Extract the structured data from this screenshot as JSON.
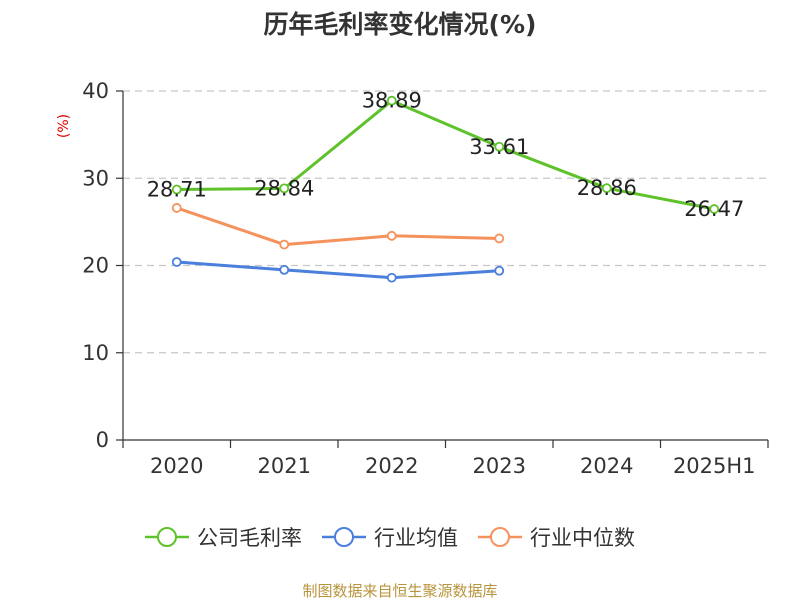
{
  "chart_data": {
    "type": "line",
    "title": "历年毛利率变化情况(%)",
    "ylabel": "(%)",
    "xlabel": "",
    "categories": [
      "2020",
      "2021",
      "2022",
      "2023",
      "2024",
      "2025H1"
    ],
    "ylim": [
      0,
      40
    ],
    "yticks": [
      0,
      10,
      20,
      30,
      40
    ],
    "grid": true,
    "legend_position": "bottom",
    "series": [
      {
        "name": "公司毛利率",
        "color": "#5ec22a",
        "values": [
          28.71,
          28.84,
          38.89,
          33.61,
          28.86,
          26.47
        ],
        "labels": [
          "28.71",
          "28.84",
          "38.89",
          "33.61",
          "28.86",
          "26.47"
        ]
      },
      {
        "name": "行业均值",
        "color": "#4a7fdc",
        "values": [
          20.4,
          19.5,
          18.6,
          19.4,
          null,
          null
        ]
      },
      {
        "name": "行业中位数",
        "color": "#f5925c",
        "values": [
          26.6,
          22.4,
          23.4,
          23.1,
          null,
          null
        ]
      }
    ]
  },
  "source_text": "制图数据来自恒生聚源数据库"
}
